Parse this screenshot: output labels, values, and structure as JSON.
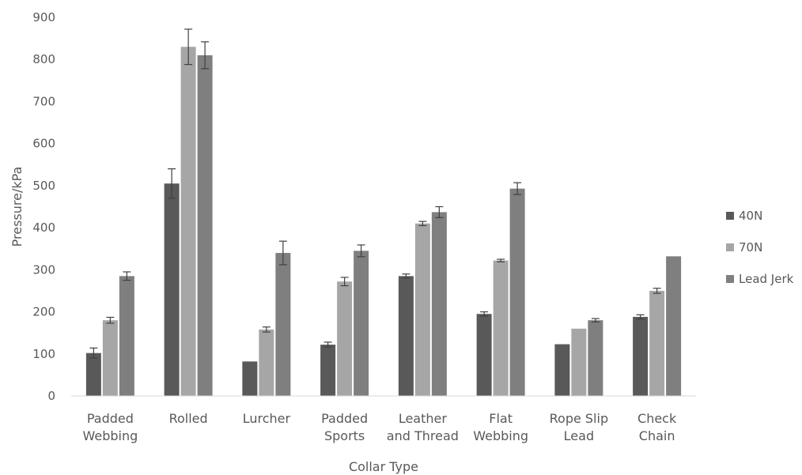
{
  "chart_data": {
    "type": "bar",
    "categories": [
      [
        "Padded",
        "Webbing"
      ],
      [
        "Rolled"
      ],
      [
        "Lurcher"
      ],
      [
        "Padded",
        "Sports"
      ],
      [
        "Leather",
        "and Thread"
      ],
      [
        "Flat",
        "Webbing"
      ],
      [
        "Rope Slip",
        "Lead"
      ],
      [
        "Check",
        "Chain"
      ]
    ],
    "series": [
      {
        "name": "40N",
        "color": "#595959",
        "values": [
          102,
          505,
          82,
          122,
          285,
          195,
          123,
          188
        ],
        "errors": [
          12,
          35,
          0,
          6,
          5,
          5,
          0,
          5
        ]
      },
      {
        "name": "70N",
        "color": "#a6a6a6",
        "values": [
          180,
          830,
          158,
          272,
          410,
          322,
          160,
          250
        ],
        "errors": [
          7,
          42,
          6,
          10,
          5,
          3,
          0,
          6
        ]
      },
      {
        "name": "Lead Jerk",
        "color": "#7f7f7f",
        "values": [
          285,
          810,
          340,
          345,
          437,
          493,
          180,
          332
        ],
        "errors": [
          10,
          32,
          28,
          14,
          13,
          14,
          4,
          0
        ]
      }
    ],
    "xlabel": "Collar Type",
    "ylabel": "Pressure/kPa",
    "ylim": [
      0,
      900
    ],
    "yticks": [
      0,
      100,
      200,
      300,
      400,
      500,
      600,
      700,
      800,
      900
    ],
    "grid": false,
    "legend_position": "right"
  }
}
